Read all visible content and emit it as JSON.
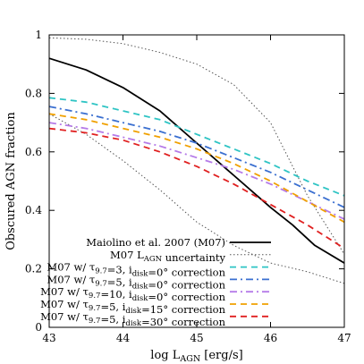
{
  "chart_data": {
    "type": "line",
    "xlabel": "log L",
    "xlabel_sub": "AGN",
    "xlabel_unit": " [erg/s]",
    "ylabel": "Obscured AGN fraction",
    "xlim": [
      43,
      47
    ],
    "ylim": [
      0,
      1
    ],
    "xticks": [
      "43",
      "44",
      "45",
      "46",
      "47"
    ],
    "yticks": [
      "0",
      "0.2",
      "0.4",
      "0.6",
      "0.8",
      "1"
    ],
    "grid": false,
    "legend_position": "bottom-left",
    "series": [
      {
        "name": "Maiolino et al. 2007 (M07)",
        "legend": [
          {
            "t": "Maiolino et al. 2007 (M07)"
          }
        ],
        "color": "#000000",
        "dash": "solid",
        "width": 1.8,
        "x": [
          43,
          43.5,
          44,
          44.5,
          45,
          45.5,
          46,
          46.3,
          46.6,
          47
        ],
        "y": [
          0.92,
          0.88,
          0.82,
          0.74,
          0.63,
          0.52,
          0.41,
          0.35,
          0.28,
          0.22
        ]
      },
      {
        "name": "M07 L_AGN uncertainty",
        "legend": [
          {
            "t": "M07 L"
          },
          {
            "t": "AGN",
            "sub": true
          },
          {
            "t": " uncertainty"
          }
        ],
        "color": "#555555",
        "dash": "dotted",
        "width": 1,
        "band": true,
        "x_upper": [
          43,
          43.5,
          44,
          44.5,
          45,
          45.5,
          46,
          46.5,
          47
        ],
        "y_upper": [
          0.99,
          0.985,
          0.97,
          0.94,
          0.9,
          0.83,
          0.7,
          0.45,
          0.25
        ],
        "x_lower": [
          43,
          43.5,
          44,
          44.5,
          45,
          45.5,
          46,
          46.5,
          47
        ],
        "y_lower": [
          0.73,
          0.66,
          0.57,
          0.47,
          0.36,
          0.28,
          0.22,
          0.19,
          0.15
        ]
      },
      {
        "name": "M07 w/ τ9.7=3, idisk=0° correction",
        "legend": [
          {
            "t": "M07 w/ τ"
          },
          {
            "t": "9.7",
            "sub": true
          },
          {
            "t": "=3, i"
          },
          {
            "t": "disk",
            "sub": true
          },
          {
            "t": "=0° correction"
          }
        ],
        "color": "#2ec4c4",
        "dash": "dashed",
        "width": 1.8,
        "x": [
          43,
          43.5,
          44,
          44.5,
          45,
          45.5,
          46,
          46.5,
          47
        ],
        "y": [
          0.785,
          0.77,
          0.74,
          0.71,
          0.66,
          0.61,
          0.56,
          0.5,
          0.45
        ]
      },
      {
        "name": "M07 w/ τ9.7=5, idisk=0° correction",
        "legend": [
          {
            "t": "M07 w/ τ"
          },
          {
            "t": "9.7",
            "sub": true
          },
          {
            "t": "=5, i"
          },
          {
            "t": "disk",
            "sub": true
          },
          {
            "t": "=0° correction"
          }
        ],
        "color": "#3a6fd0",
        "dash": "dashdot",
        "width": 1.8,
        "x": [
          43,
          43.5,
          44,
          44.5,
          45,
          45.5,
          46,
          46.5,
          47
        ],
        "y": [
          0.755,
          0.73,
          0.7,
          0.67,
          0.63,
          0.58,
          0.53,
          0.47,
          0.41
        ]
      },
      {
        "name": "M07 w/ τ9.7=10, idisk=0° correction",
        "legend": [
          {
            "t": "M07 w/ τ"
          },
          {
            "t": "9.7",
            "sub": true
          },
          {
            "t": "=10, i"
          },
          {
            "t": "disk",
            "sub": true
          },
          {
            "t": "=0° correction"
          }
        ],
        "color": "#b57be8",
        "dash": "dashdot",
        "width": 1.8,
        "x": [
          43,
          43.5,
          44,
          44.5,
          45,
          45.5,
          46,
          46.5,
          47
        ],
        "y": [
          0.7,
          0.68,
          0.65,
          0.62,
          0.58,
          0.54,
          0.49,
          0.43,
          0.37
        ]
      },
      {
        "name": "M07 w/ τ9.7=5, idisk=15° correction",
        "legend": [
          {
            "t": "M07 w/ τ"
          },
          {
            "t": "9.7",
            "sub": true
          },
          {
            "t": "=5, i"
          },
          {
            "t": "disk",
            "sub": true
          },
          {
            "t": "=15° correction"
          }
        ],
        "color": "#f0a000",
        "dash": "dashed",
        "width": 1.8,
        "x": [
          43,
          43.5,
          44,
          44.5,
          45,
          45.5,
          46,
          46.5,
          47
        ],
        "y": [
          0.73,
          0.71,
          0.68,
          0.65,
          0.61,
          0.56,
          0.5,
          0.43,
          0.36
        ]
      },
      {
        "name": "M07 w/ τ9.7=5, idisk=30° correction",
        "legend": [
          {
            "t": "M07 w/ τ"
          },
          {
            "t": "9.7",
            "sub": true
          },
          {
            "t": "=5, i"
          },
          {
            "t": "disk",
            "sub": true
          },
          {
            "t": "=30° correction"
          }
        ],
        "color": "#e02020",
        "dash": "dashed",
        "width": 1.8,
        "x": [
          43,
          43.5,
          44,
          44.5,
          45,
          45.5,
          46,
          46.5,
          47
        ],
        "y": [
          0.68,
          0.665,
          0.64,
          0.6,
          0.55,
          0.49,
          0.42,
          0.35,
          0.27
        ]
      }
    ]
  }
}
